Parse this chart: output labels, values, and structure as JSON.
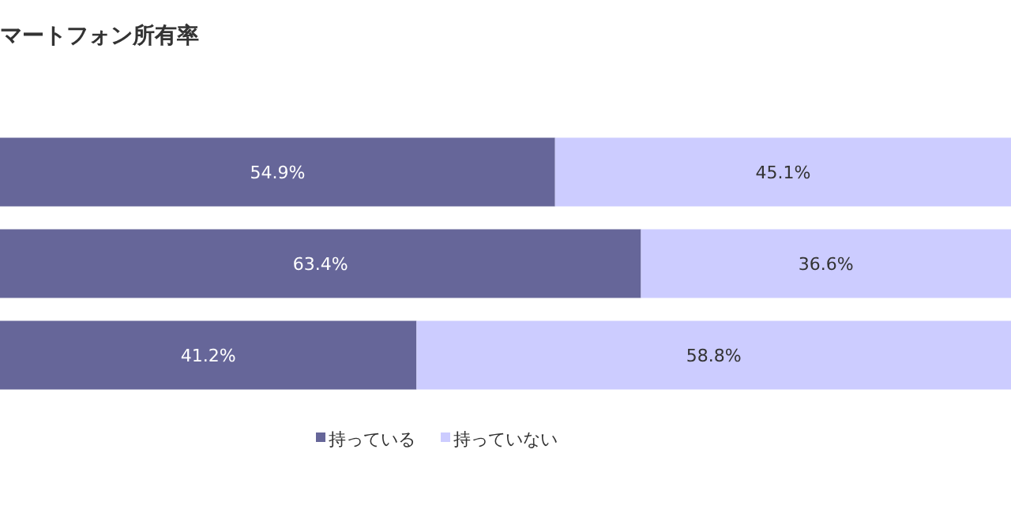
{
  "chart_data": {
    "type": "bar",
    "orientation": "horizontal",
    "stacked": true,
    "title": "マートフォン所有率",
    "categories": [
      null,
      null,
      null
    ],
    "series": [
      {
        "name": "持っている",
        "color": "#666699",
        "values": [
          54.9,
          63.4,
          41.2
        ],
        "value_labels": [
          "54.9%",
          "63.4%",
          "41.2%"
        ]
      },
      {
        "name": "持っていない",
        "color": "#ccccff",
        "values": [
          45.1,
          36.6,
          58.8
        ],
        "value_labels": [
          "45.1%",
          "36.6%",
          "58.8%"
        ]
      }
    ],
    "xlim": [
      0,
      100
    ],
    "legend": "bottom"
  }
}
